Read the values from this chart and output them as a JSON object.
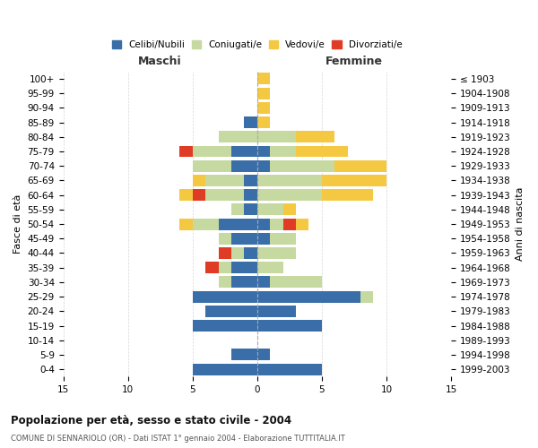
{
  "age_groups": [
    "0-4",
    "5-9",
    "10-14",
    "15-19",
    "20-24",
    "25-29",
    "30-34",
    "35-39",
    "40-44",
    "45-49",
    "50-54",
    "55-59",
    "60-64",
    "65-69",
    "70-74",
    "75-79",
    "80-84",
    "85-89",
    "90-94",
    "95-99",
    "100+"
  ],
  "birth_years": [
    "1999-2003",
    "1994-1998",
    "1989-1993",
    "1984-1988",
    "1979-1983",
    "1974-1978",
    "1969-1973",
    "1964-1968",
    "1959-1963",
    "1954-1958",
    "1949-1953",
    "1944-1948",
    "1939-1943",
    "1934-1938",
    "1929-1933",
    "1924-1928",
    "1919-1923",
    "1914-1918",
    "1909-1913",
    "1904-1908",
    "≤ 1903"
  ],
  "colors": {
    "celibe": "#3a6ea8",
    "coniugato": "#c5d9a0",
    "vedovo": "#f5c842",
    "divorziato": "#e03b24"
  },
  "males": {
    "celibe": [
      5,
      2,
      0,
      5,
      4,
      5,
      2,
      2,
      1,
      2,
      3,
      1,
      1,
      1,
      2,
      2,
      0,
      1,
      0,
      0,
      0
    ],
    "coniugato": [
      0,
      0,
      0,
      0,
      0,
      0,
      1,
      1,
      1,
      1,
      2,
      1,
      3,
      3,
      3,
      3,
      3,
      0,
      0,
      0,
      0
    ],
    "vedovo": [
      0,
      0,
      0,
      0,
      0,
      0,
      0,
      0,
      0,
      0,
      1,
      0,
      1,
      1,
      0,
      0,
      0,
      0,
      0,
      0,
      0
    ],
    "divorziato": [
      0,
      0,
      0,
      0,
      0,
      0,
      0,
      1,
      1,
      0,
      0,
      0,
      1,
      0,
      0,
      1,
      0,
      0,
      0,
      0,
      0
    ]
  },
  "females": {
    "nubile": [
      5,
      1,
      0,
      5,
      3,
      8,
      1,
      0,
      0,
      1,
      1,
      0,
      0,
      0,
      1,
      1,
      0,
      0,
      0,
      0,
      0
    ],
    "coniugata": [
      0,
      0,
      0,
      0,
      0,
      1,
      4,
      2,
      3,
      2,
      1,
      2,
      5,
      5,
      5,
      2,
      3,
      0,
      0,
      0,
      0
    ],
    "vedova": [
      0,
      0,
      0,
      0,
      0,
      0,
      0,
      0,
      0,
      0,
      1,
      1,
      4,
      5,
      4,
      4,
      3,
      1,
      1,
      1,
      1
    ],
    "divorziata": [
      0,
      0,
      0,
      0,
      0,
      0,
      0,
      0,
      0,
      0,
      1,
      0,
      0,
      0,
      0,
      0,
      0,
      0,
      0,
      0,
      0
    ]
  },
  "xlim": 15,
  "title": "Popolazione per età, sesso e stato civile - 2004",
  "subtitle": "COMUNE DI SENNARIOLO (OR) - Dati ISTAT 1° gennaio 2004 - Elaborazione TUTTITALIA.IT",
  "ylabel_left": "Fasce di età",
  "ylabel_right": "Anni di nascita",
  "xlabel_left": "Maschi",
  "xlabel_right": "Femmine"
}
